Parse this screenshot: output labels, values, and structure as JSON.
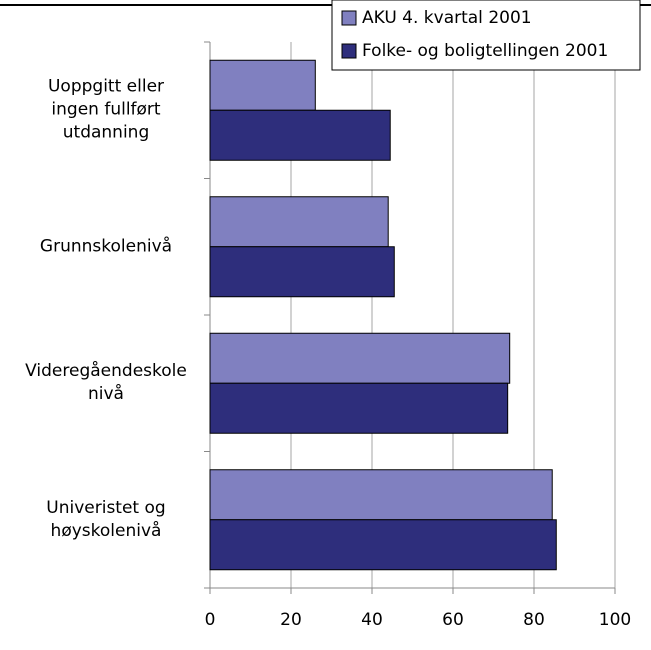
{
  "chart_data": {
    "type": "hbar",
    "categories": [
      "Uoppgitt eller\ningen fullført\nutdanning",
      "Grunnskolenivå",
      "Videregåendeskole\nnivå",
      "Univeristet og\nhøyskolenivå"
    ],
    "series": [
      {
        "name": "AKU 4. kvartal 2001",
        "color": "#8080c0",
        "values": [
          26,
          44,
          74,
          84.5
        ]
      },
      {
        "name": "Folke- og boligtellingen 2001",
        "color": "#2e2e7c",
        "values": [
          44.5,
          45.5,
          73.5,
          85.5
        ]
      }
    ],
    "xlim": [
      0,
      100
    ],
    "xticks": [
      0,
      20,
      40,
      60,
      80,
      100
    ],
    "grid": true,
    "legend": "top-right"
  }
}
